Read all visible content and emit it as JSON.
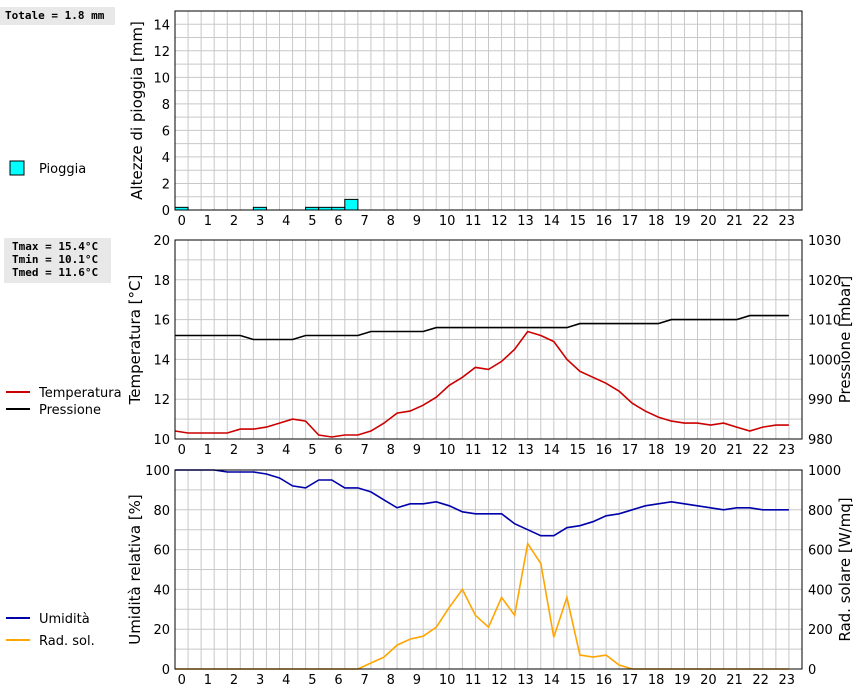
{
  "summaries": {
    "rain_total": "Totale = 1.8 mm",
    "temp_lines": [
      "Tmax = 15.4°C",
      "Tmin = 10.1°C",
      "Tmed = 11.6°C"
    ]
  },
  "colors": {
    "rain": "#00ffff",
    "temperature": "#cc0000",
    "pressure": "#000000",
    "humidity": "#0000aa",
    "radiation": "#ffa500",
    "grid": "#c8c8c8",
    "summary_bg": "#e8e8e8"
  },
  "chart_data": [
    {
      "type": "bar",
      "x_ticks": [
        "0",
        "1",
        "2",
        "3",
        "4",
        "5",
        "6",
        "7",
        "8",
        "9",
        "10",
        "11",
        "12",
        "13",
        "14",
        "15",
        "16",
        "17",
        "18",
        "19",
        "20",
        "21",
        "22",
        "23"
      ],
      "xlim": [
        0,
        24
      ],
      "ylabel": "Altezze di pioggia [mm]",
      "ylim": [
        0,
        15
      ],
      "y_ticks": [
        "0",
        "2",
        "4",
        "6",
        "8",
        "10",
        "12",
        "14"
      ],
      "legend": [
        {
          "name": "Pioggia"
        }
      ],
      "series": [
        {
          "name": "Pioggia",
          "bar_width": 0.5,
          "x": [
            0,
            3,
            5,
            5.5,
            6,
            6.5
          ],
          "values": [
            0.2,
            0.2,
            0.2,
            0.2,
            0.2,
            0.8
          ]
        }
      ],
      "grid": true
    },
    {
      "type": "line",
      "x_ticks": [
        "0",
        "1",
        "2",
        "3",
        "4",
        "5",
        "6",
        "7",
        "8",
        "9",
        "10",
        "11",
        "12",
        "13",
        "14",
        "15",
        "16",
        "17",
        "18",
        "19",
        "20",
        "21",
        "22",
        "23"
      ],
      "xlim": [
        0,
        24
      ],
      "ylabel": "Temperatura [°C]",
      "ylim": [
        10,
        20
      ],
      "y_ticks": [
        "10",
        "12",
        "14",
        "16",
        "18",
        "20"
      ],
      "y2label": "Pressione [mbar]",
      "y2lim": [
        980,
        1030
      ],
      "y2_ticks": [
        "980",
        "990",
        "1000",
        "1010",
        "1020",
        "1030"
      ],
      "legend": [
        {
          "name": "Temperatura"
        },
        {
          "name": "Pressione"
        }
      ],
      "series": [
        {
          "name": "Temperatura",
          "axis": "left",
          "x": [
            0,
            0.5,
            1,
            1.5,
            2,
            2.5,
            3,
            3.5,
            4,
            4.5,
            5,
            5.5,
            6,
            6.5,
            7,
            7.5,
            8,
            8.5,
            9,
            9.5,
            10,
            10.5,
            11,
            11.5,
            12,
            12.5,
            13,
            13.5,
            14,
            14.5,
            15,
            15.5,
            16,
            16.5,
            17,
            17.5,
            18,
            18.5,
            19,
            19.5,
            20,
            20.5,
            21,
            21.5,
            22,
            22.5,
            23,
            23.5
          ],
          "values": [
            10.4,
            10.3,
            10.3,
            10.3,
            10.3,
            10.5,
            10.5,
            10.6,
            10.8,
            11.0,
            10.9,
            10.2,
            10.1,
            10.2,
            10.2,
            10.4,
            10.8,
            11.3,
            11.4,
            11.7,
            12.1,
            12.7,
            13.1,
            13.6,
            13.5,
            13.9,
            14.5,
            15.4,
            15.2,
            14.9,
            14.0,
            13.4,
            13.1,
            12.8,
            12.4,
            11.8,
            11.4,
            11.1,
            10.9,
            10.8,
            10.8,
            10.7,
            10.8,
            10.6,
            10.4,
            10.6,
            10.7,
            10.7
          ]
        },
        {
          "name": "Pressione",
          "axis": "right",
          "x": [
            0,
            0.5,
            1,
            1.5,
            2,
            2.5,
            3,
            3.5,
            4,
            4.5,
            5,
            5.5,
            6,
            6.5,
            7,
            7.5,
            8,
            8.5,
            9,
            9.5,
            10,
            10.5,
            11,
            11.5,
            12,
            12.5,
            13,
            13.5,
            14,
            14.5,
            15,
            15.5,
            16,
            16.5,
            17,
            17.5,
            18,
            18.5,
            19,
            19.5,
            20,
            20.5,
            21,
            21.5,
            22,
            22.5,
            23,
            23.5
          ],
          "values": [
            1006,
            1006,
            1006,
            1006,
            1006,
            1006,
            1005,
            1005,
            1005,
            1005,
            1006,
            1006,
            1006,
            1006,
            1006,
            1007,
            1007,
            1007,
            1007,
            1007,
            1008,
            1008,
            1008,
            1008,
            1008,
            1008,
            1008,
            1008,
            1008,
            1008,
            1008,
            1009,
            1009,
            1009,
            1009,
            1009,
            1009,
            1009,
            1010,
            1010,
            1010,
            1010,
            1010,
            1010,
            1011,
            1011,
            1011,
            1011
          ]
        }
      ],
      "grid": true
    },
    {
      "type": "line",
      "x_ticks": [
        "0",
        "1",
        "2",
        "3",
        "4",
        "5",
        "6",
        "7",
        "8",
        "9",
        "10",
        "11",
        "12",
        "13",
        "14",
        "15",
        "16",
        "17",
        "18",
        "19",
        "20",
        "21",
        "22",
        "23"
      ],
      "xlim": [
        0,
        24
      ],
      "ylabel": "Umidità relativa [%]",
      "ylim": [
        0,
        100
      ],
      "y_ticks": [
        "0",
        "20",
        "40",
        "60",
        "80",
        "100"
      ],
      "y2label": "Rad. solare [W/mq]",
      "y2lim": [
        0,
        1000
      ],
      "y2_ticks": [
        "0",
        "200",
        "400",
        "600",
        "800",
        "1000"
      ],
      "legend": [
        {
          "name": "Umidità"
        },
        {
          "name": "Rad. sol."
        }
      ],
      "series": [
        {
          "name": "Umidità",
          "axis": "left",
          "x": [
            0,
            0.5,
            1,
            1.5,
            2,
            2.5,
            3,
            3.5,
            4,
            4.5,
            5,
            5.5,
            6,
            6.5,
            7,
            7.5,
            8,
            8.5,
            9,
            9.5,
            10,
            10.5,
            11,
            11.5,
            12,
            12.5,
            13,
            13.5,
            14,
            14.5,
            15,
            15.5,
            16,
            16.5,
            17,
            17.5,
            18,
            18.5,
            19,
            19.5,
            20,
            20.5,
            21,
            21.5,
            22,
            22.5,
            23,
            23.5
          ],
          "values": [
            100,
            100,
            100,
            100,
            99,
            99,
            99,
            98,
            96,
            92,
            91,
            95,
            95,
            91,
            91,
            89,
            85,
            81,
            83,
            83,
            84,
            82,
            79,
            78,
            78,
            78,
            73,
            70,
            67,
            67,
            71,
            72,
            74,
            77,
            78,
            80,
            82,
            83,
            84,
            83,
            82,
            81,
            80,
            81,
            81,
            80,
            80,
            80
          ]
        },
        {
          "name": "Rad. sol.",
          "axis": "right",
          "x": [
            0,
            0.5,
            1,
            1.5,
            2,
            2.5,
            3,
            3.5,
            4,
            4.5,
            5,
            5.5,
            6,
            6.5,
            7,
            7.5,
            8,
            8.5,
            9,
            9.5,
            10,
            10.5,
            11,
            11.5,
            12,
            12.5,
            13,
            13.5,
            14,
            14.5,
            15,
            15.5,
            16,
            16.5,
            17,
            17.5,
            18,
            18.5,
            19,
            19.5,
            20,
            20.5,
            21,
            21.5,
            22,
            22.5,
            23,
            23.5
          ],
          "values": [
            0,
            0,
            0,
            0,
            0,
            0,
            0,
            0,
            0,
            0,
            0,
            0,
            0,
            0,
            0,
            30,
            60,
            120,
            150,
            165,
            210,
            310,
            400,
            270,
            210,
            360,
            270,
            630,
            530,
            160,
            360,
            70,
            60,
            70,
            20,
            0,
            0,
            0,
            0,
            0,
            0,
            0,
            0,
            0,
            0,
            0,
            0,
            0
          ]
        }
      ],
      "grid": true
    }
  ]
}
